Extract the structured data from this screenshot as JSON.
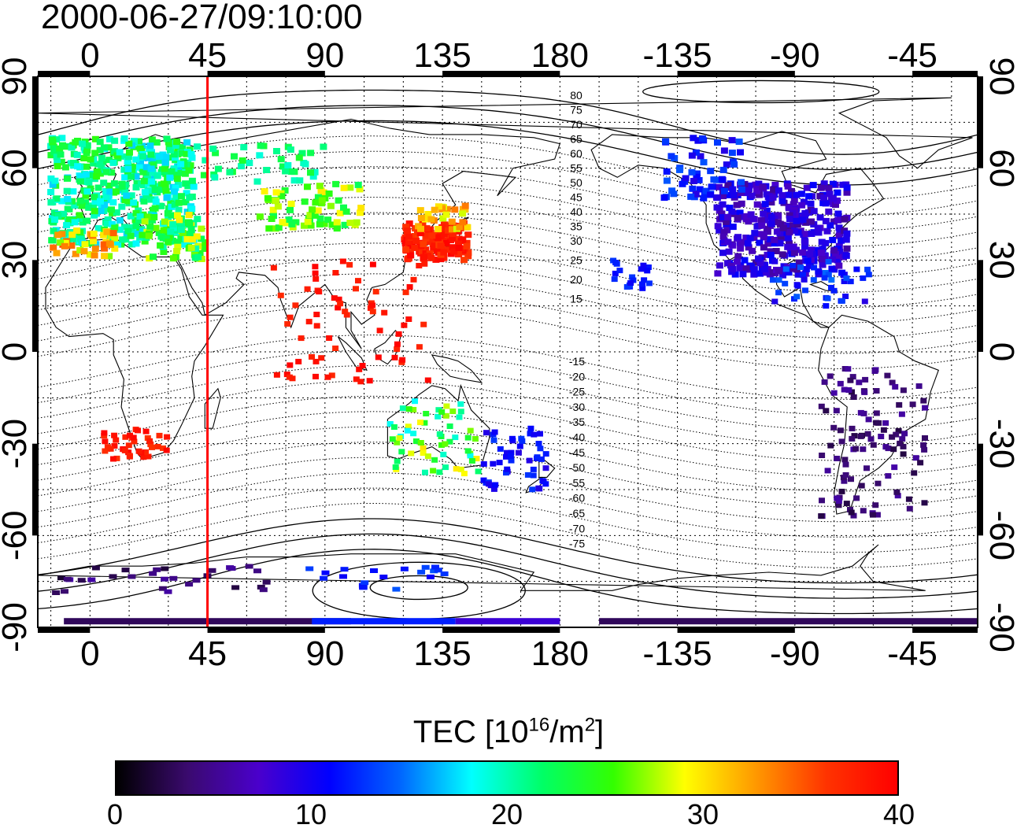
{
  "title": "2000-06-27/09:10:00",
  "colorbar": {
    "title_text": "TEC  [10",
    "title_exp1": "16",
    "title_mid": "/m",
    "title_exp2": "2",
    "title_close": "]",
    "ticks": [
      "0",
      "10",
      "20",
      "30",
      "40"
    ],
    "range": [
      0,
      40
    ],
    "stops": [
      "#000000",
      "#3a0a6e",
      "#4a00cc",
      "#0000ff",
      "#0066ff",
      "#00ffff",
      "#00ff66",
      "#33ff00",
      "#ffff00",
      "#ff9900",
      "#ff3300",
      "#ff0000"
    ]
  },
  "map": {
    "projection": "equirectangular",
    "lon_range": [
      -20,
      340
    ],
    "lat_range": [
      -90,
      90
    ],
    "lon_tick_labels": [
      "0",
      "45",
      "90",
      "135",
      "180",
      "-135",
      "-90",
      "-45"
    ],
    "lat_tick_labels": [
      "90",
      "60",
      "30",
      "0",
      "-30",
      "-60",
      "-90"
    ],
    "marker_longitude": 45,
    "marker_color": "#ff0000",
    "contour_labels_north": [
      "80",
      "75",
      "70",
      "65",
      "60",
      "55",
      "50",
      "45",
      "40",
      "35",
      "30",
      "25",
      "20",
      "15"
    ],
    "contour_labels_south": [
      "-15",
      "-20",
      "-25",
      "-30",
      "-35",
      "-40",
      "-45",
      "-50",
      "-55",
      "-60",
      "-65",
      "-70",
      "-75"
    ]
  }
}
